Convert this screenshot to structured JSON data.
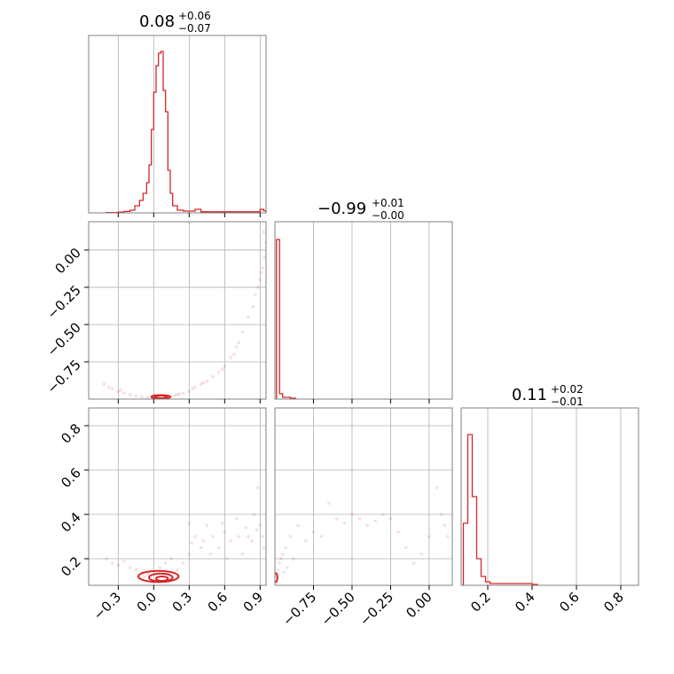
{
  "colors": {
    "series": "#d62728",
    "grid": "#b0b0b0",
    "frame": "#808080",
    "text": "#000000"
  },
  "chart_data": [
    {
      "type": "histogram",
      "panel": "param1-marginal",
      "title": {
        "median": "0.08",
        "plus": "+0.06",
        "minus": "−0.07"
      },
      "xlim": [
        -0.55,
        0.95
      ],
      "bins": [
        [
          -0.4,
          0.002
        ],
        [
          -0.3,
          0.004
        ],
        [
          -0.25,
          0.008
        ],
        [
          -0.2,
          0.015
        ],
        [
          -0.16,
          0.04
        ],
        [
          -0.12,
          0.07
        ],
        [
          -0.09,
          0.11
        ],
        [
          -0.06,
          0.17
        ],
        [
          -0.04,
          0.27
        ],
        [
          -0.02,
          0.47
        ],
        [
          0.0,
          0.68
        ],
        [
          0.02,
          0.83
        ],
        [
          0.04,
          0.9
        ],
        [
          0.06,
          0.91
        ],
        [
          0.08,
          0.69
        ],
        [
          0.1,
          0.57
        ],
        [
          0.12,
          0.24
        ],
        [
          0.14,
          0.11
        ],
        [
          0.16,
          0.04
        ],
        [
          0.2,
          0.015
        ],
        [
          0.25,
          0.01
        ],
        [
          0.35,
          0.02
        ],
        [
          0.4,
          0.006
        ],
        [
          0.7,
          0.006
        ],
        [
          0.75,
          0.006
        ],
        [
          0.9,
          0.02
        ],
        [
          0.93,
          0.012
        ]
      ],
      "xticks": [
        "−0.3",
        "0.0",
        "0.3",
        "0.6",
        "0.9"
      ]
    },
    {
      "type": "histogram",
      "panel": "param2-marginal",
      "title": {
        "median": "−0.99",
        "plus": "+0.01",
        "minus": "−0.00"
      },
      "xlim": [
        -1.0,
        0.15
      ],
      "bins": [
        [
          -0.99,
          0.9
        ],
        [
          -0.97,
          0.03
        ],
        [
          -0.95,
          0.01
        ],
        [
          -0.9,
          0.005
        ]
      ],
      "xticks": [
        "−0.75",
        "−0.50",
        "−0.25",
        "0.00"
      ]
    },
    {
      "type": "histogram",
      "panel": "param3-marginal",
      "title": {
        "median": "0.11",
        "plus": "+0.02",
        "minus": "−0.01"
      },
      "xlim": [
        0.08,
        0.88
      ],
      "bins": [
        [
          0.09,
          0.35
        ],
        [
          0.11,
          0.85
        ],
        [
          0.13,
          0.5
        ],
        [
          0.15,
          0.15
        ],
        [
          0.17,
          0.05
        ],
        [
          0.19,
          0.02
        ],
        [
          0.21,
          0.01
        ],
        [
          0.25,
          0.01
        ],
        [
          0.3,
          0.01
        ],
        [
          0.34,
          0.01
        ],
        [
          0.4,
          0.005
        ]
      ],
      "xticks": [
        "0.2",
        "0.4",
        "0.6",
        "0.8"
      ]
    },
    {
      "type": "scatter",
      "panel": "param1-vs-param2",
      "xlim": [
        -0.55,
        0.95
      ],
      "ylim": [
        -1.0,
        0.19
      ],
      "yticks": [
        "0.00",
        "−0.25",
        "−0.50",
        "−0.75"
      ],
      "points": [
        [
          -0.42,
          -0.9
        ],
        [
          -0.35,
          -0.93
        ],
        [
          -0.3,
          -0.95
        ],
        [
          -0.25,
          -0.96
        ],
        [
          -0.2,
          -0.97
        ],
        [
          -0.15,
          -0.98
        ],
        [
          -0.1,
          -0.985
        ],
        [
          -0.05,
          -0.99
        ],
        [
          0.0,
          -0.99
        ],
        [
          0.05,
          -0.99
        ],
        [
          0.1,
          -0.985
        ],
        [
          0.15,
          -0.98
        ],
        [
          0.2,
          -0.97
        ],
        [
          0.25,
          -0.96
        ],
        [
          0.3,
          -0.95
        ],
        [
          0.35,
          -0.92
        ],
        [
          0.4,
          -0.9
        ],
        [
          0.45,
          -0.88
        ],
        [
          0.5,
          -0.85
        ],
        [
          0.55,
          -0.82
        ],
        [
          0.6,
          -0.78
        ],
        [
          0.65,
          -0.72
        ],
        [
          0.7,
          -0.65
        ],
        [
          0.72,
          -0.62
        ],
        [
          0.75,
          -0.55
        ],
        [
          0.8,
          -0.45
        ],
        [
          0.84,
          -0.38
        ],
        [
          0.88,
          -0.25
        ],
        [
          0.9,
          -0.2
        ],
        [
          0.92,
          -0.12
        ],
        [
          0.94,
          -0.05
        ],
        [
          0.95,
          0.05
        ],
        [
          0.93,
          0.12
        ],
        [
          0.3,
          0.19
        ],
        [
          -0.38,
          -0.92
        ],
        [
          -0.28,
          -0.94
        ],
        [
          0.18,
          -0.975
        ],
        [
          0.22,
          -0.965
        ],
        [
          0.33,
          -0.93
        ],
        [
          0.42,
          -0.89
        ],
        [
          0.58,
          -0.8
        ],
        [
          0.68,
          -0.7
        ],
        [
          0.86,
          -0.3
        ],
        [
          0.91,
          -0.15
        ]
      ],
      "contours": [
        {
          "cx": 0.06,
          "cy": -0.985,
          "rx": 0.08,
          "ry": 0.012
        },
        {
          "cx": 0.06,
          "cy": -0.985,
          "rx": 0.05,
          "ry": 0.008
        }
      ]
    },
    {
      "type": "scatter",
      "panel": "param1-vs-param3",
      "xlim": [
        -0.55,
        0.95
      ],
      "ylim": [
        0.08,
        0.88
      ],
      "yticks": [
        "0.8",
        "0.6",
        "0.4",
        "0.2"
      ],
      "xticks": [
        "−0.3",
        "0.0",
        "0.3",
        "0.6",
        "0.9"
      ],
      "points": [
        [
          -0.4,
          0.2
        ],
        [
          -0.35,
          0.18
        ],
        [
          -0.3,
          0.17
        ],
        [
          -0.25,
          0.19
        ],
        [
          -0.2,
          0.16
        ],
        [
          -0.15,
          0.15
        ],
        [
          -0.1,
          0.14
        ],
        [
          -0.08,
          0.12
        ],
        [
          0.2,
          0.15
        ],
        [
          0.25,
          0.18
        ],
        [
          0.3,
          0.22
        ],
        [
          0.32,
          0.27
        ],
        [
          0.35,
          0.3
        ],
        [
          0.4,
          0.25
        ],
        [
          0.45,
          0.35
        ],
        [
          0.5,
          0.3
        ],
        [
          0.55,
          0.25
        ],
        [
          0.6,
          0.32
        ],
        [
          0.65,
          0.28
        ],
        [
          0.7,
          0.38
        ],
        [
          0.75,
          0.22
        ],
        [
          0.8,
          0.3
        ],
        [
          0.85,
          0.4
        ],
        [
          0.88,
          0.52
        ],
        [
          0.9,
          0.35
        ],
        [
          0.92,
          0.3
        ],
        [
          0.93,
          0.25
        ],
        [
          0.3,
          0.36
        ],
        [
          0.48,
          0.22
        ],
        [
          0.62,
          0.2
        ],
        [
          0.72,
          0.3
        ],
        [
          0.78,
          0.34
        ],
        [
          0.83,
          0.28
        ],
        [
          0.15,
          0.2
        ],
        [
          0.1,
          0.18
        ],
        [
          0.05,
          0.16
        ],
        [
          -0.05,
          0.13
        ],
        [
          0.42,
          0.28
        ],
        [
          0.58,
          0.36
        ],
        [
          0.87,
          0.33
        ]
      ],
      "contours": [
        {
          "cx": 0.04,
          "cy": 0.12,
          "rx": 0.17,
          "ry": 0.025
        },
        {
          "cx": 0.06,
          "cy": 0.115,
          "rx": 0.1,
          "ry": 0.018
        },
        {
          "cx": 0.07,
          "cy": 0.11,
          "rx": 0.05,
          "ry": 0.01
        }
      ]
    },
    {
      "type": "scatter",
      "panel": "param2-vs-param3",
      "xlim": [
        -1.0,
        0.15
      ],
      "ylim": [
        0.08,
        0.88
      ],
      "xticks": [
        "−0.75",
        "−0.50",
        "−0.25",
        "0.00"
      ],
      "points": [
        [
          -0.99,
          0.12
        ],
        [
          -0.98,
          0.15
        ],
        [
          -0.97,
          0.18
        ],
        [
          -0.96,
          0.2
        ],
        [
          -0.95,
          0.22
        ],
        [
          -0.93,
          0.25
        ],
        [
          -0.9,
          0.3
        ],
        [
          -0.85,
          0.35
        ],
        [
          -0.8,
          0.28
        ],
        [
          -0.75,
          0.32
        ],
        [
          -0.7,
          0.3
        ],
        [
          -0.6,
          0.38
        ],
        [
          -0.5,
          0.4
        ],
        [
          -0.45,
          0.38
        ],
        [
          -0.4,
          0.35
        ],
        [
          -0.35,
          0.37
        ],
        [
          -0.3,
          0.4
        ],
        [
          -0.25,
          0.38
        ],
        [
          -0.2,
          0.32
        ],
        [
          -0.15,
          0.25
        ],
        [
          -0.1,
          0.18
        ],
        [
          -0.05,
          0.22
        ],
        [
          0.0,
          0.3
        ],
        [
          0.05,
          0.52
        ],
        [
          0.08,
          0.4
        ],
        [
          0.1,
          0.35
        ],
        [
          0.12,
          0.3
        ],
        [
          -0.65,
          0.45
        ],
        [
          -0.55,
          0.36
        ],
        [
          -0.88,
          0.2
        ],
        [
          -0.92,
          0.16
        ],
        [
          -0.94,
          0.14
        ]
      ],
      "contours": [
        {
          "cx": -0.995,
          "cy": 0.115,
          "rx": 0.01,
          "ry": 0.02
        }
      ]
    }
  ]
}
